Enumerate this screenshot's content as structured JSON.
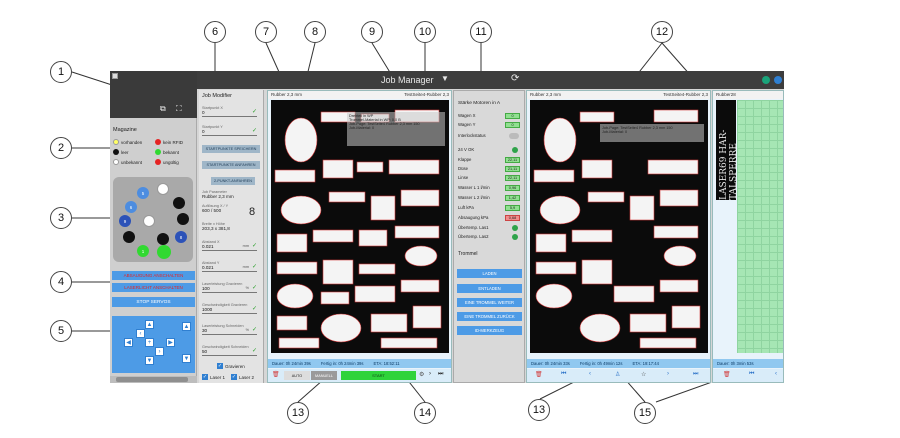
{
  "callouts": [
    "1",
    "2",
    "3",
    "4",
    "5",
    "6",
    "7",
    "8",
    "9",
    "10",
    "11",
    "12",
    "13",
    "14",
    "15"
  ],
  "app": {
    "title": "Job Manager",
    "title_caret": "▼",
    "refresh_icon": "⟳",
    "window_dots": [
      "#1aa37a",
      "#2f7fd1",
      "#f08a24"
    ]
  },
  "left": {
    "fullscreen_icons": [
      "⧉",
      "⛶"
    ],
    "magazine_title": "Magazine",
    "legend": [
      {
        "label": "vorhanden",
        "color": "#ffff66"
      },
      {
        "label": "kein RFID",
        "color": "#e52323"
      },
      {
        "label": "leer",
        "color": "#111111"
      },
      {
        "label": "bekannt",
        "color": "#31d931"
      },
      {
        "label": "unbekannt",
        "color": "#ffffff"
      },
      {
        "label": "ungültig",
        "color": "#e52323"
      }
    ],
    "slots": [
      {
        "label": "",
        "color": "#ffffff"
      },
      {
        "label": "5",
        "color": "#4d8de0"
      },
      {
        "label": "",
        "color": "#111111"
      },
      {
        "label": "6",
        "color": "#4d8de0"
      },
      {
        "label": "",
        "color": "#111111"
      },
      {
        "label": "9",
        "color": "#2c52b8"
      },
      {
        "label": "",
        "color": "#ffffff"
      },
      {
        "label": "8",
        "color": "#2c52b8"
      },
      {
        "label": "",
        "color": "#111111"
      },
      {
        "label": "",
        "color": "#111111"
      },
      {
        "label": "1",
        "color": "#31d931"
      },
      {
        "label": "",
        "color": "#31d931"
      }
    ],
    "red_buttons": [
      "ABSAUGUNG ANSCHALTEN",
      "LASERLICHT ANSCHALTEN"
    ],
    "stop_servos": "STOP SERVOS",
    "dpad": {
      "up": "▲",
      "down": "▼",
      "left": "◀",
      "right": "▶",
      "left2": "‹",
      "right2": "›",
      "center": "+"
    }
  },
  "jobmod": {
    "title": "Job Modifier",
    "fields": [
      {
        "label": "Startpunkt X",
        "value": "0"
      },
      {
        "label": "Startpunkt Y",
        "value": "0"
      }
    ],
    "buttons": [
      "STARTPUNKTE SPEICHERN",
      "STARTPUNKTE ANFAHREN",
      "2-PUNKT-ANFAHREN"
    ],
    "job_param_label": "Job Parameter",
    "job_param_value": "Rubber 2,3 mm",
    "aufloesung_label": "Auflösung X / Y",
    "aufloesung_value": "600 / 500",
    "big_digit": "8",
    "breite_label": "Breite x Höhe",
    "breite_value": "203,3 x 381,8",
    "fields2": [
      {
        "label": "Abstand X",
        "value": "0.021",
        "unit": "mm"
      },
      {
        "label": "Abstand Y",
        "value": "0.021",
        "unit": "mm"
      },
      {
        "label": "Laserleistung Gravieren",
        "value": "100",
        "unit": "%"
      },
      {
        "label": "Geschwindigkeit Gravieren",
        "value": "1000",
        "unit": ""
      },
      {
        "label": "Laserleistung Schneiden",
        "value": "30",
        "unit": "%"
      },
      {
        "label": "Geschwindigkeit Schneiden",
        "value": "50",
        "unit": ""
      }
    ],
    "check_gravieren": "Gravieren",
    "check_laser1": "Laser 1",
    "check_laser2": "Laser 2"
  },
  "pane1": {
    "head_left": "Rubber 2,3 mm",
    "head_right": "TestSeite4-Rubber 2,3",
    "overlay_lines": [
      "Drehteil in WP",
      "Trommel-Material in WP: 0.0 B",
      "Job-Page: TestSeite4 Rubber 2,3 mm 150",
      "Job-Material: 0"
    ],
    "status_dauer": "Dauer: 0h 24min 39s",
    "status_fertig": "Fertig in: 0h 24min 39s",
    "status_eta": "ETA: 18:52:11",
    "auto_label": "AUTO",
    "manual_label": "MANUELL",
    "start_label": "START"
  },
  "sensor": {
    "title": "Stärke Motoren in A",
    "rows": [
      {
        "label": "Wagen X",
        "value": "0",
        "kind": "val"
      },
      {
        "label": "Wagen Y",
        "value": "0",
        "kind": "val"
      },
      {
        "label": "Interlockstatus",
        "value": "",
        "kind": "tog"
      },
      {
        "label": "24 V OK",
        "value": "",
        "kind": "led"
      },
      {
        "label": "Klappe",
        "value": "22,11",
        "kind": "val"
      },
      {
        "label": "Düse",
        "value": "21,11",
        "kind": "val"
      },
      {
        "label": "Linse",
        "value": "22,11",
        "kind": "val"
      },
      {
        "label": "Wasser L 1 l/min",
        "value": "0,96",
        "kind": "val"
      },
      {
        "label": "Wasser L 2 l/min",
        "value": "1,42",
        "kind": "val"
      },
      {
        "label": "Luft kPa",
        "value": "5,9",
        "kind": "val"
      },
      {
        "label": "Absaugung kPa",
        "value": "0,68",
        "kind": "valred"
      },
      {
        "label": "Übertemp. Las1",
        "value": "",
        "kind": "led"
      },
      {
        "label": "Übertemp. Las2",
        "value": "",
        "kind": "led"
      }
    ],
    "trommel": "Trommel",
    "buttons": [
      "LADEN",
      "ENTLADEN",
      "EINE TROMMEL WEITER",
      "EINE TROMMEL ZURÜCK",
      "ID-MERKZEUG"
    ]
  },
  "pane2": {
    "head_left": "Rubber 2,3 mm",
    "head_right": "TestSeite4-Rubber 2,3",
    "overlay_lines": [
      "Job-Page: TestSeite4 Rubber 2,3 mm 150",
      "Job-Material: 0"
    ],
    "status_dauer": "Dauer: 0h 24min 33s",
    "status_fertig": "Fertig in: 0h 49min 12s",
    "status_eta": "ETA: 19:17:44"
  },
  "pane3": {
    "head_left": "Rubber28",
    "status_dauer": "Dauer: 0h 3min 53s",
    "vertical_text": "LASER69 HAR-TALSPERRE"
  }
}
